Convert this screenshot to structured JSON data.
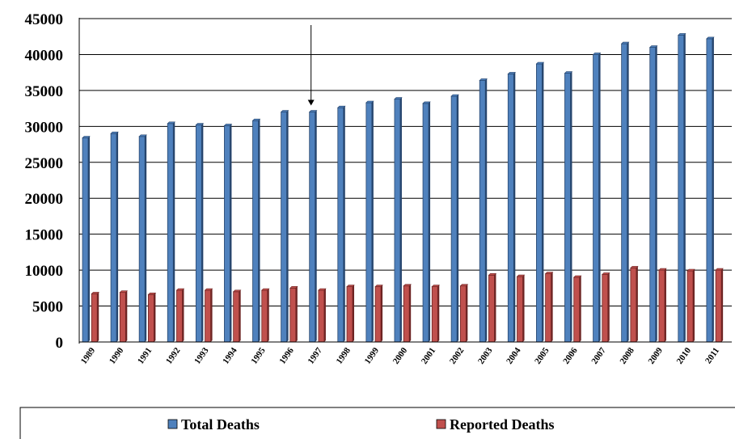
{
  "chart_data": {
    "type": "bar",
    "categories": [
      "1989",
      "1990",
      "1991",
      "1992",
      "1993",
      "1994",
      "1995",
      "1996",
      "1997",
      "1998",
      "1999",
      "2000",
      "2001",
      "2002",
      "2003",
      "2004",
      "2005",
      "2006",
      "2007",
      "2008",
      "2009",
      "2010",
      "2011"
    ],
    "series": [
      {
        "name": "Total Deaths",
        "color": "#4F81BD",
        "values": [
          28400,
          29000,
          28600,
          30400,
          30200,
          30100,
          30800,
          32000,
          32000,
          32600,
          33300,
          33800,
          33200,
          34200,
          36400,
          37300,
          38700,
          37400,
          40000,
          41500,
          41000,
          42700,
          42200
        ]
      },
      {
        "name": "Reported Deaths",
        "color": "#C0504D",
        "values": [
          6700,
          6900,
          6600,
          7200,
          7200,
          7000,
          7200,
          7500,
          7200,
          7700,
          7700,
          7800,
          7700,
          7800,
          9300,
          9100,
          9500,
          9000,
          9400,
          10300,
          10000,
          9900,
          10000
        ]
      }
    ],
    "ylim": [
      0,
      45000
    ],
    "yticks": [
      0,
      5000,
      10000,
      15000,
      20000,
      25000,
      30000,
      35000,
      40000,
      45000
    ],
    "grid": "horizontal",
    "legend": "bottom",
    "annotation": {
      "type": "arrow",
      "category": "1997"
    },
    "xlabel": "",
    "ylabel": ""
  }
}
